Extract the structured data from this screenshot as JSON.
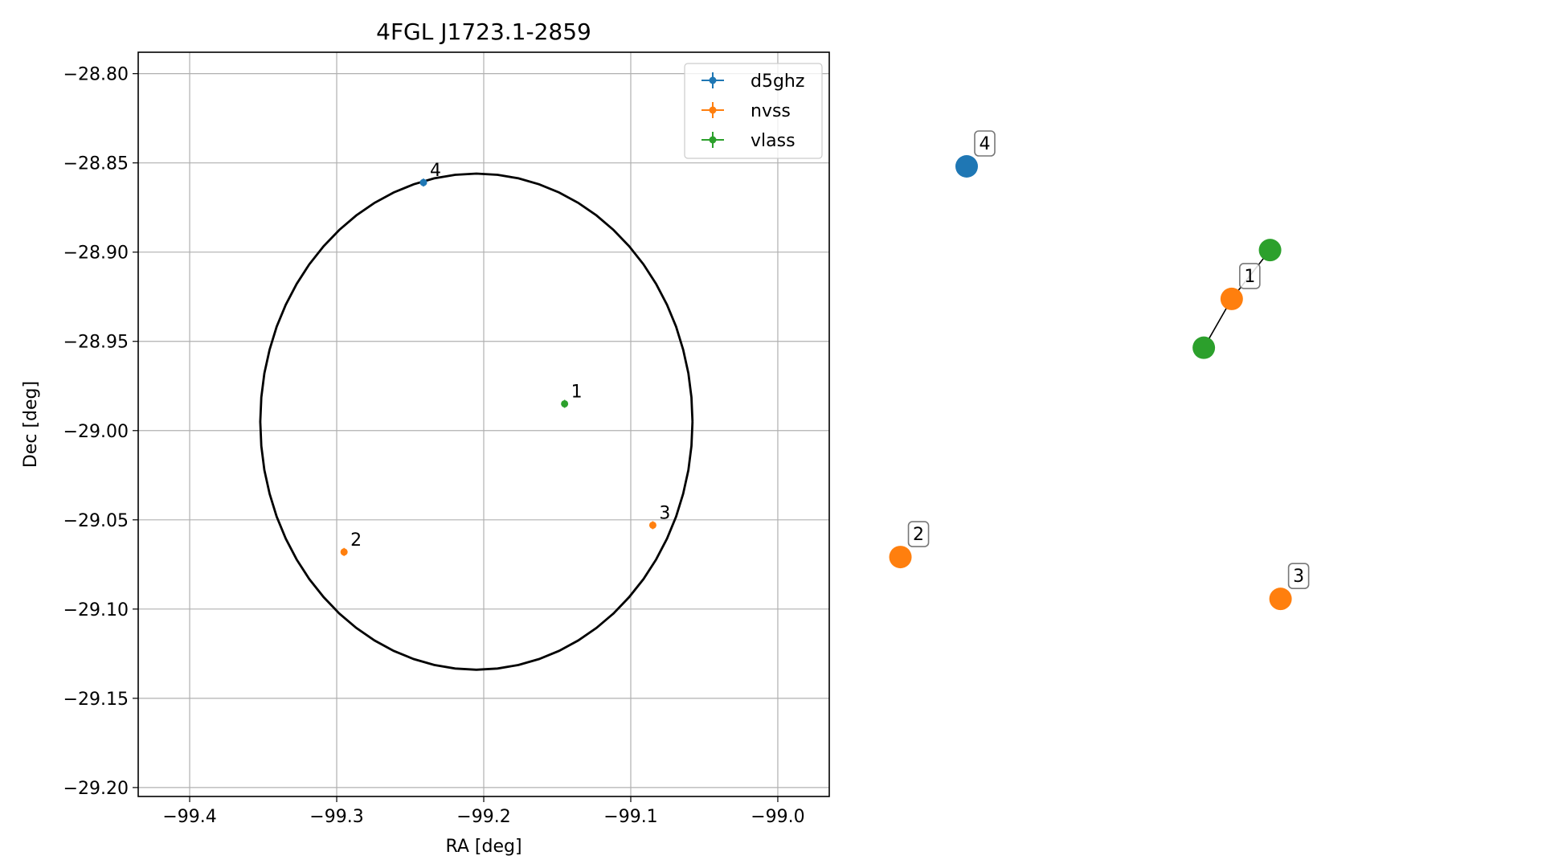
{
  "chart_data": [
    {
      "type": "scatter",
      "title": "4FGL J1723.1-2859",
      "xlabel": "RA [deg]",
      "ylabel": "Dec [deg]",
      "xlim": [
        -99.435,
        -98.965
      ],
      "ylim": [
        -29.205,
        -28.788
      ],
      "xticks": [
        -99.4,
        -99.3,
        -99.2,
        -99.1,
        -99.0
      ],
      "xtick_labels": [
        "−99.4",
        "−99.3",
        "−99.2",
        "−99.1",
        "−99.0"
      ],
      "yticks": [
        -28.8,
        -28.85,
        -28.9,
        -28.95,
        -29.0,
        -29.05,
        -29.1,
        -29.15,
        -29.2
      ],
      "ytick_labels": [
        "−28.80",
        "−28.85",
        "−28.90",
        "−28.95",
        "−29.00",
        "−29.05",
        "−29.10",
        "−29.15",
        "−29.20"
      ],
      "grid": true,
      "legend_position": "upper-right",
      "series": [
        {
          "name": "d5ghz",
          "color": "#1f77b4",
          "points": [
            {
              "id": "4",
              "x": -99.241,
              "y": -28.861
            }
          ]
        },
        {
          "name": "nvss",
          "color": "#ff7f0e",
          "points": [
            {
              "id": "2",
              "x": -99.295,
              "y": -29.068
            },
            {
              "id": "3",
              "x": -99.085,
              "y": -29.053
            }
          ]
        },
        {
          "name": "vlass",
          "color": "#2ca02c",
          "points": [
            {
              "id": "1",
              "x": -99.145,
              "y": -28.985
            }
          ]
        }
      ],
      "ellipse": {
        "center_x": -99.205,
        "center_y": -28.995,
        "radius_x": 0.147,
        "radius_y": 0.139,
        "color": "#000000"
      }
    },
    {
      "type": "network",
      "nodes": [
        {
          "label": "4",
          "series": "d5ghz",
          "color": "#1f77b4",
          "x": 0.0,
          "y": 0.0
        },
        {
          "label": "",
          "series": "vlass",
          "color": "#2ca02c",
          "x": 0.87,
          "y": -0.24
        },
        {
          "label": "1",
          "series": "nvss",
          "color": "#ff7f0e",
          "x": 0.76,
          "y": -0.38
        },
        {
          "label": "",
          "series": "vlass",
          "color": "#2ca02c",
          "x": 0.68,
          "y": -0.52
        },
        {
          "label": "2",
          "series": "nvss",
          "color": "#ff7f0e",
          "x": -0.19,
          "y": -1.12
        },
        {
          "label": "3",
          "series": "nvss",
          "color": "#ff7f0e",
          "x": 0.9,
          "y": -1.24
        }
      ],
      "edges": [
        [
          1,
          2
        ],
        [
          2,
          3
        ]
      ]
    }
  ]
}
